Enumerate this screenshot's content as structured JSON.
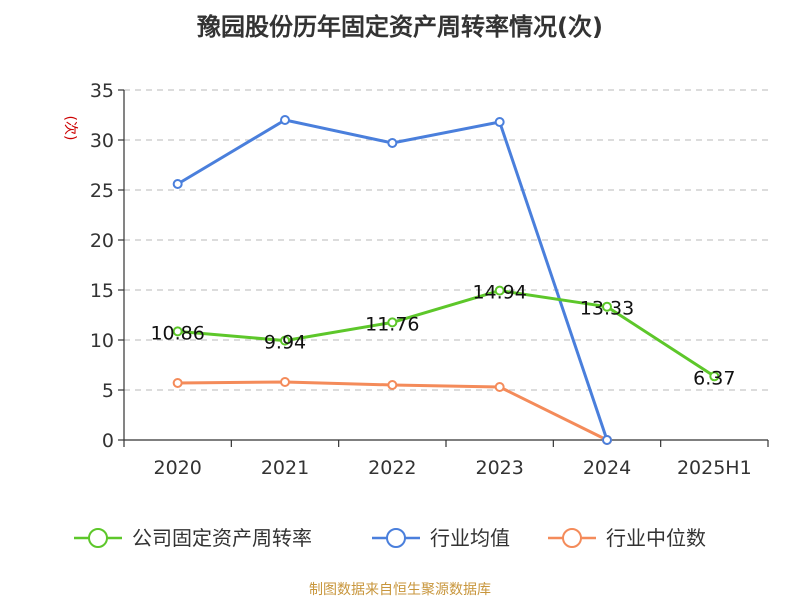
{
  "chart_data": {
    "type": "line",
    "title": "豫园股份历年固定资产周转率情况(次)",
    "ylabel": "(次)",
    "xlabel": "",
    "categories": [
      "2020",
      "2021",
      "2022",
      "2023",
      "2024",
      "2025H1"
    ],
    "ylim": [
      0,
      35
    ],
    "yticks": [
      0,
      5,
      10,
      15,
      20,
      25,
      30,
      35
    ],
    "grid": true,
    "legend_position": "bottom",
    "series": [
      {
        "name": "公司固定资产周转率",
        "color": "#5dc72a",
        "values": [
          10.86,
          9.94,
          11.76,
          14.94,
          13.33,
          6.37
        ],
        "labels": [
          "10.86",
          "9.94",
          "11.76",
          "14.94",
          "13.33",
          "6.37"
        ]
      },
      {
        "name": "行业均值",
        "color": "#4a7fdc",
        "values": [
          25.6,
          32.0,
          29.7,
          31.8,
          0.0,
          null
        ]
      },
      {
        "name": "行业中位数",
        "color": "#f48b5a",
        "values": [
          5.7,
          5.8,
          5.5,
          5.3,
          0.0,
          null
        ]
      }
    ]
  },
  "source": "制图数据来自恒生聚源数据库"
}
